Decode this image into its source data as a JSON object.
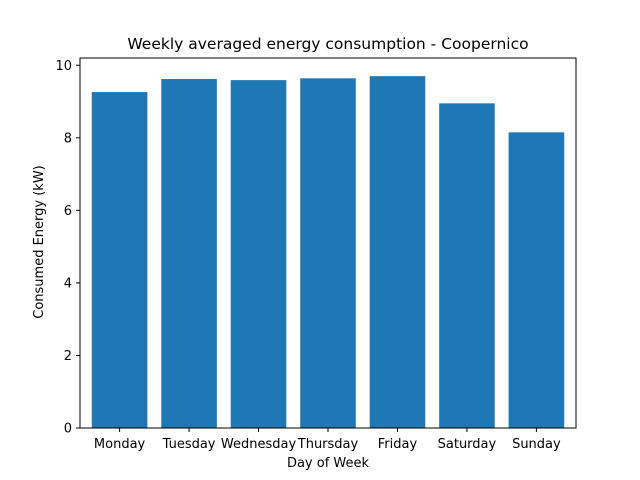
{
  "chart_data": {
    "type": "bar",
    "title": "Weekly averaged energy consumption - Coopernico",
    "xlabel": "Day of Week",
    "ylabel": "Consumed Energy (kW)",
    "categories": [
      "Monday",
      "Tuesday",
      "Wednesday",
      "Thursday",
      "Friday",
      "Saturday",
      "Sunday"
    ],
    "values": [
      9.26,
      9.62,
      9.59,
      9.64,
      9.7,
      8.95,
      8.15
    ],
    "ylim": [
      0,
      10.2
    ],
    "yticks": [
      0,
      2,
      4,
      6,
      8,
      10
    ],
    "bar_color": "#1f77b4",
    "grid": false,
    "legend": "none"
  }
}
